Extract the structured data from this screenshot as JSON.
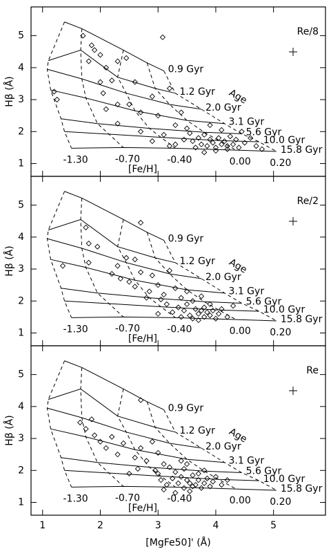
{
  "chart_data": [
    {
      "type": "scatter",
      "label": "Re/8",
      "ylabel": "Hβ (Å)",
      "metallicity_title": "[Fe/H]",
      "age_title": "Age",
      "xlim": [
        0.8,
        5.9
      ],
      "ylim": [
        0.6,
        5.9
      ],
      "xticks": [
        1,
        2,
        3,
        4,
        5
      ],
      "yticks": [
        1,
        2,
        3,
        4,
        5
      ],
      "x": [
        3.08,
        1.7,
        1.85,
        1.9,
        2.3,
        2.1,
        2.0,
        2.45,
        1.8,
        2.2,
        2.6,
        2.0,
        2.05,
        2.3,
        1.2,
        1.25,
        2.1,
        2.5,
        2.7,
        3.2,
        2.9,
        3.0,
        2.3,
        2.7,
        3.3,
        3.4,
        3.1,
        3.5,
        3.6,
        3.7,
        3.75,
        3.8,
        3.85,
        3.9,
        3.95,
        4.0,
        4.05,
        4.1,
        4.15,
        4.2,
        4.25,
        4.3,
        4.35,
        4.4,
        3.65,
        3.55,
        3.45,
        3.3,
        4.5,
        4.6,
        4.7,
        3.9,
        4.1,
        4.45,
        4.0,
        4.2,
        3.8,
        2.9,
        3.2,
        4.8
      ],
      "y": [
        4.95,
        5.0,
        4.7,
        4.55,
        4.2,
        4.0,
        4.4,
        4.3,
        4.2,
        3.6,
        3.55,
        3.55,
        3.2,
        2.85,
        3.25,
        3.0,
        2.7,
        2.85,
        2.6,
        3.35,
        3.1,
        2.5,
        2.25,
        2.0,
        2.2,
        2.6,
        1.9,
        2.1,
        1.7,
        1.8,
        1.6,
        1.9,
        1.55,
        1.75,
        1.65,
        1.5,
        1.8,
        1.6,
        1.7,
        1.55,
        1.85,
        1.6,
        1.75,
        1.5,
        1.5,
        1.95,
        1.75,
        1.6,
        1.65,
        1.8,
        1.55,
        2.2,
        2.05,
        2.0,
        1.4,
        1.45,
        1.35,
        1.7,
        1.55,
        1.45
      ],
      "model_grid": {
        "ages": [
          "0.9 Gyr",
          "1.2 Gyr",
          "2.0 Gyr",
          "3.1 Gyr",
          "5.6 Gyr",
          "10.0 Gyr",
          "15.8 Gyr"
        ],
        "metallicities": [
          "-1.30",
          "-0.70",
          "-0.40",
          "0.00",
          "0.20"
        ],
        "x": [
          [
            1.38,
            1.68,
            2.4,
            2.81,
            3.1
          ],
          [
            1.1,
            1.66,
            2.3,
            2.95,
            3.3
          ],
          [
            1.08,
            1.68,
            2.45,
            3.2,
            3.75
          ],
          [
            1.14,
            1.75,
            2.6,
            3.5,
            4.15
          ],
          [
            1.32,
            1.95,
            2.85,
            3.8,
            4.45
          ],
          [
            1.38,
            2.15,
            3.05,
            4.05,
            4.75
          ],
          [
            1.5,
            2.4,
            3.3,
            4.35,
            5.05
          ]
        ],
        "y": [
          [
            5.43,
            5.22,
            4.55,
            4.15,
            3.9
          ],
          [
            4.22,
            4.55,
            3.7,
            3.35,
            3.2
          ],
          [
            3.95,
            3.65,
            3.2,
            2.85,
            2.7
          ],
          [
            3.3,
            3.05,
            2.65,
            2.35,
            2.25
          ],
          [
            2.4,
            2.25,
            2.1,
            1.98,
            1.93
          ],
          [
            2.0,
            1.92,
            1.82,
            1.72,
            1.68
          ],
          [
            1.48,
            1.5,
            1.48,
            1.42,
            1.38
          ]
        ]
      }
    },
    {
      "type": "scatter",
      "label": "Re/2",
      "ylabel": "Hβ (Å)",
      "metallicity_title": "[Fe/H]",
      "age_title": "Age",
      "xlim": [
        0.8,
        5.9
      ],
      "ylim": [
        0.6,
        5.9
      ],
      "xticks": [
        1,
        2,
        3,
        4,
        5
      ],
      "yticks": [
        1,
        2,
        3,
        4,
        5
      ],
      "x": [
        2.7,
        1.75,
        1.8,
        1.95,
        1.35,
        1.8,
        2.3,
        2.45,
        2.6,
        2.2,
        2.35,
        2.5,
        2.7,
        2.9,
        3.0,
        3.2,
        2.6,
        2.85,
        3.1,
        3.3,
        3.4,
        3.5,
        3.6,
        3.65,
        3.7,
        3.75,
        3.8,
        3.85,
        3.9,
        3.95,
        4.0,
        4.05,
        3.55,
        3.45,
        3.35,
        3.25,
        3.15,
        3.05,
        3.6,
        3.7,
        3.8,
        4.1,
        4.2,
        3.4,
        3.5,
        2.8,
        3.9,
        4.3,
        3.0,
        3.75
      ],
      "y": [
        4.45,
        4.3,
        3.8,
        3.7,
        3.1,
        3.2,
        3.1,
        3.35,
        3.3,
        2.85,
        2.7,
        2.6,
        2.9,
        2.8,
        2.5,
        2.95,
        2.45,
        2.3,
        2.2,
        2.4,
        2.1,
        1.9,
        2.0,
        1.75,
        1.6,
        1.7,
        1.5,
        1.65,
        1.55,
        1.7,
        1.45,
        1.6,
        1.55,
        1.7,
        1.8,
        1.65,
        1.9,
        2.05,
        1.45,
        1.4,
        1.8,
        1.75,
        1.5,
        1.5,
        2.3,
        2.1,
        1.9,
        1.85,
        1.6,
        2.15
      ],
      "model_grid": {
        "ages": [
          "0.9 Gyr",
          "1.2 Gyr",
          "2.0 Gyr",
          "3.1 Gyr",
          "5.6 Gyr",
          "10.0 Gyr",
          "15.8 Gyr"
        ],
        "metallicities": [
          "-1.30",
          "-0.70",
          "-0.40",
          "0.00",
          "0.20"
        ],
        "x": [
          [
            1.38,
            1.68,
            2.4,
            2.81,
            3.1
          ],
          [
            1.1,
            1.66,
            2.3,
            2.95,
            3.3
          ],
          [
            1.08,
            1.68,
            2.45,
            3.2,
            3.75
          ],
          [
            1.14,
            1.75,
            2.6,
            3.5,
            4.15
          ],
          [
            1.32,
            1.95,
            2.85,
            3.8,
            4.45
          ],
          [
            1.38,
            2.15,
            3.05,
            4.05,
            4.75
          ],
          [
            1.5,
            2.4,
            3.3,
            4.35,
            5.05
          ]
        ],
        "y": [
          [
            5.43,
            5.22,
            4.55,
            4.15,
            3.9
          ],
          [
            4.22,
            4.55,
            3.7,
            3.35,
            3.2
          ],
          [
            3.95,
            3.65,
            3.2,
            2.85,
            2.7
          ],
          [
            3.3,
            3.05,
            2.65,
            2.35,
            2.25
          ],
          [
            2.4,
            2.25,
            2.1,
            1.98,
            1.93
          ],
          [
            2.0,
            1.92,
            1.82,
            1.72,
            1.68
          ],
          [
            1.48,
            1.5,
            1.48,
            1.42,
            1.38
          ]
        ]
      }
    },
    {
      "type": "scatter",
      "label": "Re",
      "ylabel": "Hβ (Å)",
      "xlabel": "[MgFe50]' (Å)",
      "metallicity_title": "[Fe/H]",
      "age_title": "Age",
      "xlim": [
        0.8,
        5.9
      ],
      "ylim": [
        0.6,
        5.9
      ],
      "xticks": [
        1,
        2,
        3,
        4,
        5
      ],
      "yticks": [
        1,
        2,
        3,
        4,
        5
      ],
      "x": [
        2.7,
        1.85,
        1.65,
        1.75,
        1.9,
        2.2,
        2.0,
        2.1,
        2.4,
        2.3,
        2.6,
        2.7,
        2.8,
        2.9,
        3.0,
        3.1,
        3.2,
        2.95,
        3.3,
        3.4,
        3.45,
        3.5,
        3.55,
        3.6,
        3.65,
        3.7,
        3.75,
        3.8,
        3.85,
        3.9,
        3.35,
        3.25,
        3.15,
        3.05,
        3.45,
        3.55,
        3.6,
        3.7,
        3.8,
        3.95,
        4.0,
        4.1,
        2.5,
        2.65,
        3.1,
        3.3,
        3.5,
        4.2,
        3.0,
        3.4
      ],
      "y": [
        4.2,
        3.6,
        3.5,
        3.3,
        3.1,
        3.05,
        2.9,
        2.7,
        2.85,
        2.5,
        2.4,
        2.7,
        2.3,
        2.9,
        2.55,
        2.2,
        2.1,
        2.0,
        1.95,
        1.8,
        2.05,
        1.7,
        1.6,
        1.85,
        1.55,
        1.7,
        1.45,
        1.6,
        1.75,
        1.5,
        1.6,
        1.75,
        1.55,
        1.7,
        1.45,
        1.35,
        1.5,
        1.9,
        2.0,
        1.65,
        1.8,
        1.55,
        1.9,
        2.05,
        1.4,
        1.3,
        2.2,
        1.7,
        1.9,
        2.3
      ],
      "model_grid": {
        "ages": [
          "0.9 Gyr",
          "1.2 Gyr",
          "2.0 Gyr",
          "3.1 Gyr",
          "5.6 Gyr",
          "10.0 Gyr",
          "15.8 Gyr"
        ],
        "metallicities": [
          "-1.30",
          "-0.70",
          "-0.40",
          "0.00",
          "0.20"
        ],
        "x": [
          [
            1.38,
            1.68,
            2.4,
            2.81,
            3.1
          ],
          [
            1.1,
            1.66,
            2.3,
            2.95,
            3.3
          ],
          [
            1.08,
            1.68,
            2.45,
            3.2,
            3.75
          ],
          [
            1.14,
            1.75,
            2.6,
            3.5,
            4.15
          ],
          [
            1.32,
            1.95,
            2.85,
            3.8,
            4.45
          ],
          [
            1.38,
            2.15,
            3.05,
            4.05,
            4.75
          ],
          [
            1.5,
            2.4,
            3.3,
            4.35,
            5.05
          ]
        ],
        "y": [
          [
            5.43,
            5.22,
            4.55,
            4.15,
            3.9
          ],
          [
            4.22,
            4.55,
            3.7,
            3.35,
            3.2
          ],
          [
            3.95,
            3.65,
            3.2,
            2.85,
            2.7
          ],
          [
            3.3,
            3.05,
            2.65,
            2.35,
            2.25
          ],
          [
            2.4,
            2.25,
            2.1,
            1.98,
            1.93
          ],
          [
            2.0,
            1.92,
            1.82,
            1.72,
            1.68
          ],
          [
            1.48,
            1.5,
            1.48,
            1.42,
            1.38
          ]
        ]
      }
    }
  ]
}
